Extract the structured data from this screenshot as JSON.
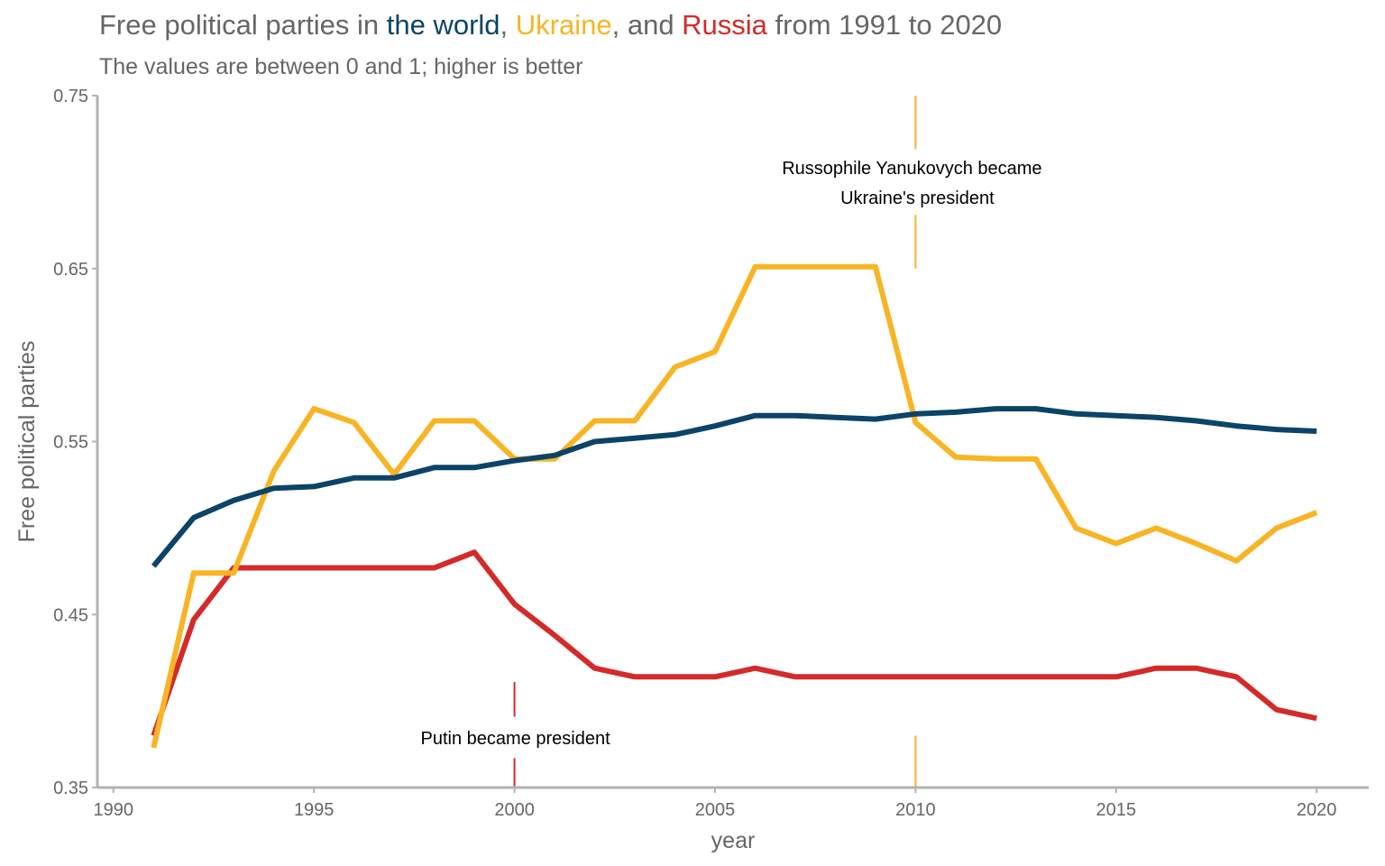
{
  "title": {
    "prefix": "Free political parties in ",
    "world": "the world",
    "sep1": ", ",
    "ukraine": "Ukraine",
    "sep2": ", and ",
    "russia": "Russia",
    "suffix": " from 1991 to 2020"
  },
  "subtitle": "The values are between 0 and 1; higher is better",
  "colors": {
    "world": "#0b4468",
    "ukraine": "#f8b424",
    "russia": "#d42a2a",
    "text": "#666666",
    "axis": "#b3b3b3"
  },
  "chart_data": {
    "type": "line",
    "xlabel": "year",
    "ylabel": "Free political parties",
    "xlim": [
      1989.6,
      2021.3
    ],
    "ylim": [
      0.35,
      0.75
    ],
    "x_ticks": [
      1990,
      1995,
      2000,
      2005,
      2010,
      2015,
      2020
    ],
    "y_ticks": [
      0.35,
      0.45,
      0.55,
      0.65,
      0.75
    ],
    "y_tick_labels": [
      "0.35",
      "0.45",
      "0.55",
      "0.65",
      "0.75"
    ],
    "grid": false,
    "legend": "none",
    "x": [
      1991,
      1992,
      1993,
      1994,
      1995,
      1996,
      1997,
      1998,
      1999,
      2000,
      2001,
      2002,
      2003,
      2004,
      2005,
      2006,
      2007,
      2008,
      2009,
      2010,
      2011,
      2012,
      2013,
      2014,
      2015,
      2016,
      2017,
      2018,
      2019,
      2020
    ],
    "series": [
      {
        "key": "world",
        "name": "the world",
        "values": [
          0.478,
          0.506,
          0.516,
          0.523,
          0.524,
          0.529,
          0.529,
          0.535,
          0.535,
          0.539,
          0.542,
          0.55,
          0.552,
          0.554,
          0.559,
          0.565,
          0.565,
          0.564,
          0.563,
          0.566,
          0.567,
          0.569,
          0.569,
          0.566,
          0.565,
          0.564,
          0.562,
          0.559,
          0.557,
          0.556
        ]
      },
      {
        "key": "ukraine",
        "name": "Ukraine",
        "values": [
          0.373,
          0.474,
          0.474,
          0.533,
          0.569,
          0.561,
          0.531,
          0.562,
          0.562,
          0.54,
          0.54,
          0.562,
          0.562,
          0.593,
          0.602,
          0.651,
          0.651,
          0.651,
          0.651,
          0.561,
          0.541,
          0.54,
          0.54,
          0.5,
          0.491,
          0.5,
          0.491,
          0.481,
          0.5,
          0.509
        ]
      },
      {
        "key": "russia",
        "name": "Russia",
        "values": [
          0.38,
          0.447,
          0.477,
          0.477,
          0.477,
          0.477,
          0.477,
          0.477,
          0.486,
          0.456,
          0.438,
          0.419,
          0.414,
          0.414,
          0.414,
          0.419,
          0.414,
          0.414,
          0.414,
          0.414,
          0.414,
          0.414,
          0.414,
          0.414,
          0.414,
          0.419,
          0.419,
          0.414,
          0.395,
          0.39
        ]
      }
    ],
    "annotations": [
      {
        "key": "yanukovych",
        "x": 2010,
        "lines": [
          "Russophile Yanukovych became",
          "Ukraine's president"
        ],
        "color": "#f8b424"
      },
      {
        "key": "putin",
        "x": 2000,
        "lines": [
          "Putin became president"
        ],
        "color": "#d42a2a"
      }
    ]
  }
}
